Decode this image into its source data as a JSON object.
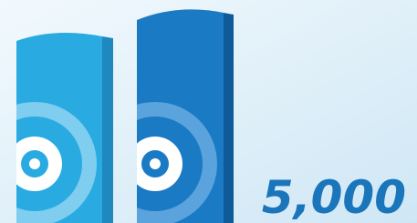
{
  "label": "5,000"
}
